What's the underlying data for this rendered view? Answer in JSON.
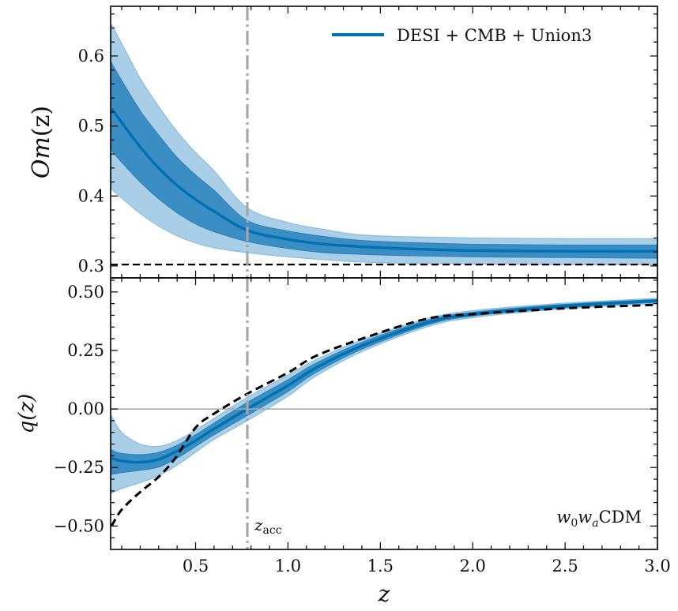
{
  "chart_data": [
    {
      "type": "line",
      "panel": "top",
      "title": "",
      "xlabel": "",
      "ylabel": "Om(z)",
      "xlim": [
        0.04,
        3.0
      ],
      "ylim": [
        0.283,
        0.671
      ],
      "yticks": [
        0.3,
        0.4,
        0.5,
        0.6
      ],
      "ytick_labels": [
        "0.3",
        "0.4",
        "0.5",
        "0.6"
      ],
      "grid": false,
      "legend": {
        "position": "top-right",
        "entries": [
          {
            "label": "DESI + CMB + Union3",
            "color": "#0072B2"
          }
        ]
      },
      "x": [
        0.045,
        0.1,
        0.2,
        0.3,
        0.4,
        0.5,
        0.6,
        0.78,
        1.0,
        1.2,
        1.37,
        1.6,
        2.0,
        2.5,
        3.0
      ],
      "series": [
        {
          "name": "DESI + CMB + Union3 (mean)",
          "values": [
            0.525,
            0.505,
            0.47,
            0.44,
            0.415,
            0.395,
            0.378,
            0.351,
            0.338,
            0.331,
            0.328,
            0.325,
            0.322,
            0.321,
            0.321
          ]
        },
        {
          "name": "1sigma upper",
          "values": [
            0.59,
            0.565,
            0.522,
            0.487,
            0.455,
            0.43,
            0.408,
            0.365,
            0.35,
            0.342,
            0.337,
            0.334,
            0.331,
            0.33,
            0.33
          ]
        },
        {
          "name": "1sigma lower",
          "values": [
            0.465,
            0.448,
            0.42,
            0.396,
            0.376,
            0.36,
            0.349,
            0.335,
            0.325,
            0.319,
            0.317,
            0.315,
            0.313,
            0.312,
            0.311
          ]
        },
        {
          "name": "2sigma upper",
          "values": [
            0.645,
            0.618,
            0.568,
            0.528,
            0.492,
            0.462,
            0.436,
            0.383,
            0.362,
            0.352,
            0.345,
            0.342,
            0.34,
            0.339,
            0.339
          ]
        },
        {
          "name": "2sigma lower",
          "values": [
            0.41,
            0.397,
            0.375,
            0.357,
            0.343,
            0.333,
            0.326,
            0.319,
            0.313,
            0.309,
            0.306,
            0.304,
            0.303,
            0.302,
            0.302
          ]
        }
      ],
      "reference_line": {
        "name": "LCDM",
        "style": "dashed",
        "y": 0.302,
        "color": "#000000"
      },
      "vline": {
        "x": 0.78,
        "style": "dashdot",
        "color": "#9E9E9E"
      }
    },
    {
      "type": "line",
      "panel": "bottom",
      "title": "",
      "xlabel": "z",
      "ylabel": "q(z)",
      "xlim": [
        0.04,
        3.0
      ],
      "ylim": [
        -0.6,
        0.56
      ],
      "xticks": [
        0.5,
        1.0,
        1.5,
        2.0,
        2.5,
        3.0
      ],
      "xtick_labels": [
        "0.5",
        "1.0",
        "1.5",
        "2.0",
        "2.5",
        "3.0"
      ],
      "yticks": [
        -0.5,
        -0.25,
        0.0,
        0.25,
        0.5
      ],
      "ytick_labels": [
        "−0.50",
        "−0.25",
        "0.00",
        "0.25",
        "0.50"
      ],
      "grid": false,
      "x": [
        0.045,
        0.1,
        0.2,
        0.3,
        0.4,
        0.5,
        0.6,
        0.78,
        1.0,
        1.15,
        1.4,
        1.75,
        2.0,
        2.5,
        3.0
      ],
      "series": [
        {
          "name": "DESI + CMB + Union3 (mean)",
          "values": [
            -0.21,
            -0.222,
            -0.228,
            -0.215,
            -0.18,
            -0.135,
            -0.085,
            0.0,
            0.1,
            0.175,
            0.27,
            0.368,
            0.405,
            0.44,
            0.462
          ]
        },
        {
          "name": "1sigma upper",
          "values": [
            -0.175,
            -0.19,
            -0.195,
            -0.185,
            -0.155,
            -0.11,
            -0.06,
            0.028,
            0.125,
            0.195,
            0.285,
            0.378,
            0.413,
            0.447,
            0.468
          ]
        },
        {
          "name": "1sigma lower",
          "values": [
            -0.28,
            -0.272,
            -0.262,
            -0.248,
            -0.21,
            -0.16,
            -0.11,
            -0.028,
            0.075,
            0.155,
            0.255,
            0.358,
            0.397,
            0.433,
            0.456
          ]
        },
        {
          "name": "2sigma upper",
          "values": [
            -0.03,
            -0.1,
            -0.15,
            -0.16,
            -0.135,
            -0.09,
            -0.04,
            0.05,
            0.145,
            0.21,
            0.295,
            0.385,
            0.42,
            0.452,
            0.473
          ]
        },
        {
          "name": "2sigma lower",
          "values": [
            -0.36,
            -0.34,
            -0.315,
            -0.285,
            -0.24,
            -0.185,
            -0.13,
            -0.05,
            0.055,
            0.14,
            0.245,
            0.35,
            0.39,
            0.428,
            0.451
          ]
        }
      ],
      "reference_line": {
        "name": "LCDM",
        "style": "dashed",
        "color": "#000000",
        "x": [
          0.045,
          0.1,
          0.2,
          0.3,
          0.39,
          0.5,
          0.6,
          0.78,
          1.0,
          1.15,
          1.4,
          1.75,
          2.0,
          2.5,
          3.0
        ],
        "values": [
          -0.5,
          -0.43,
          -0.355,
          -0.29,
          -0.21,
          -0.08,
          -0.02,
          0.065,
          0.155,
          0.226,
          0.3,
          0.385,
          0.405,
          0.43,
          0.445
        ]
      },
      "hline": {
        "y": 0.0,
        "color": "#9E9E9E"
      },
      "vline": {
        "x": 0.78,
        "style": "dashdot",
        "color": "#9E9E9E",
        "label": "z_acc"
      },
      "annotation": {
        "text": "w0waCDM",
        "position": "bottom-right"
      }
    }
  ],
  "labels": {
    "legend": "DESI + CMB + Union3",
    "top_ylabel_main": "Om",
    "top_ylabel_paren": "(z)",
    "bottom_ylabel": "q(z)",
    "xlabel": "z",
    "zacc_main": "z",
    "zacc_sub": "acc",
    "model_w": "w",
    "model_0": "0",
    "model_a": "a",
    "model_rest": "CDM"
  },
  "colors": {
    "mean": "#0072B2",
    "band1": "#3B8EC4",
    "band2": "#A8CFE7",
    "band2_edge": "#8BBEDC",
    "band1_edge": "#2E7FB8",
    "reference": "#000000",
    "vline": "#A6A6A6",
    "hline": "#A6A6A6"
  }
}
